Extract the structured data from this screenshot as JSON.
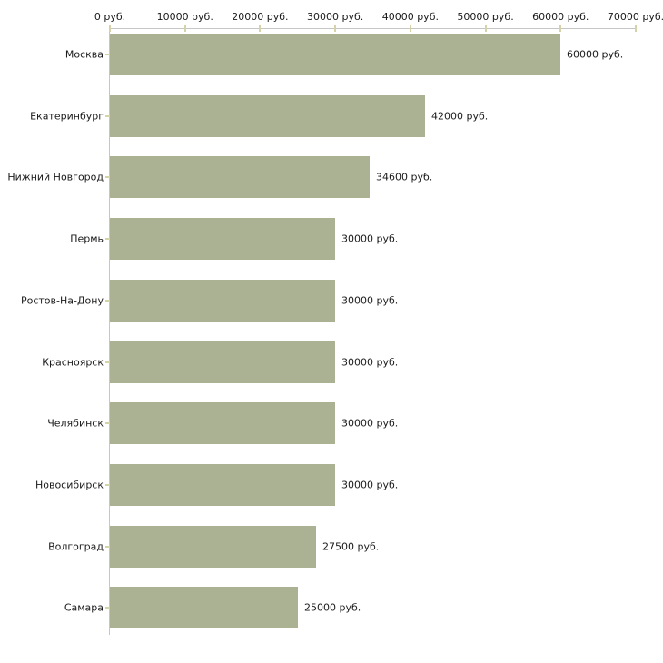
{
  "chart_data": {
    "type": "bar",
    "orientation": "horizontal",
    "title": "",
    "xlabel": "",
    "ylabel": "",
    "xlim": [
      0,
      70000
    ],
    "grid": false,
    "legend_position": "none",
    "categories": [
      "Москва",
      "Екатеринбург",
      "Нижний Новгород",
      "Пермь",
      "Ростов-На-Дону",
      "Красноярск",
      "Челябинск",
      "Новосибирск",
      "Волгоград",
      "Самара"
    ],
    "values": [
      60000,
      42000,
      34600,
      30000,
      30000,
      30000,
      30000,
      30000,
      27500,
      25000
    ],
    "value_labels": [
      "60000 руб.",
      "42000 руб.",
      "34600 руб.",
      "30000 руб.",
      "30000 руб.",
      "30000 руб.",
      "30000 руб.",
      "30000 руб.",
      "27500 руб.",
      "25000 руб."
    ],
    "x_ticks": [
      {
        "value": 0,
        "label": "0 руб."
      },
      {
        "value": 10000,
        "label": "10000 руб."
      },
      {
        "value": 20000,
        "label": "20000 руб."
      },
      {
        "value": 30000,
        "label": "30000 руб."
      },
      {
        "value": 40000,
        "label": "40000 руб."
      },
      {
        "value": 50000,
        "label": "50000 руб."
      },
      {
        "value": 60000,
        "label": "60000 руб."
      },
      {
        "value": 70000,
        "label": "70000 руб."
      }
    ]
  },
  "colors": {
    "bar_fill": "#abb294",
    "axis_line": "#c6c6c6",
    "tick_mark": "#d4d4a8",
    "text": "#1a1a1a",
    "background": "#ffffff"
  }
}
